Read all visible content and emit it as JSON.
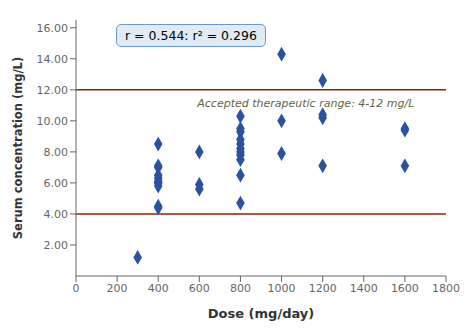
{
  "chart_data": {
    "type": "scatter",
    "xlabel": "Dose (mg/day)",
    "ylabel": "Serum concentration (mg/L)",
    "x": [
      300,
      400,
      400,
      400,
      400,
      400,
      400,
      400,
      400,
      400,
      400,
      400,
      600,
      600,
      600,
      800,
      800,
      800,
      800,
      800,
      800,
      800,
      800,
      800,
      800,
      800,
      1000,
      1000,
      1000,
      1200,
      1200,
      1200,
      1200,
      1600,
      1600,
      1600
    ],
    "values": [
      1.2,
      4.5,
      4.4,
      5.8,
      6.0,
      6.1,
      6.3,
      6.5,
      7.0,
      7.1,
      8.5,
      6.0,
      5.6,
      5.9,
      8.0,
      4.7,
      6.5,
      7.5,
      7.8,
      8.0,
      8.2,
      8.5,
      8.8,
      9.3,
      9.5,
      10.3,
      10.0,
      7.9,
      14.3,
      7.1,
      10.2,
      10.4,
      12.6,
      7.1,
      9.5,
      9.4
    ],
    "color": "#2a52a0",
    "marker": "diamond",
    "xlim": [
      0,
      1800
    ],
    "xticks": [
      0,
      200,
      400,
      600,
      800,
      1000,
      1200,
      1400,
      1600,
      1800
    ],
    "ylim": [
      0,
      16.5
    ],
    "yticks": [
      {
        "value": 2.0,
        "label": "2.00"
      },
      {
        "value": 4.0,
        "label": "4.00"
      },
      {
        "value": 6.0,
        "label": "6.00"
      },
      {
        "value": 8.0,
        "label": "8.00"
      },
      {
        "value": 10.0,
        "label": "10.00"
      },
      {
        "value": 12.0,
        "label": "12.00"
      },
      {
        "value": 14.0,
        "label": "14.00"
      },
      {
        "value": 16.0,
        "label": "16.00"
      }
    ],
    "reference_lines": [
      {
        "y": 4.0,
        "color": "#8B2500"
      },
      {
        "y": 12.0,
        "color": "#8B2500"
      }
    ],
    "annotations": [
      {
        "text": "Accepted therapeutic range: 4-12 mg/L",
        "x": 590,
        "y": 11.1,
        "color": "#666644"
      },
      {
        "text": "r = 0.544: r² = 0.296",
        "color": "#6699cc"
      }
    ],
    "grid": false
  }
}
